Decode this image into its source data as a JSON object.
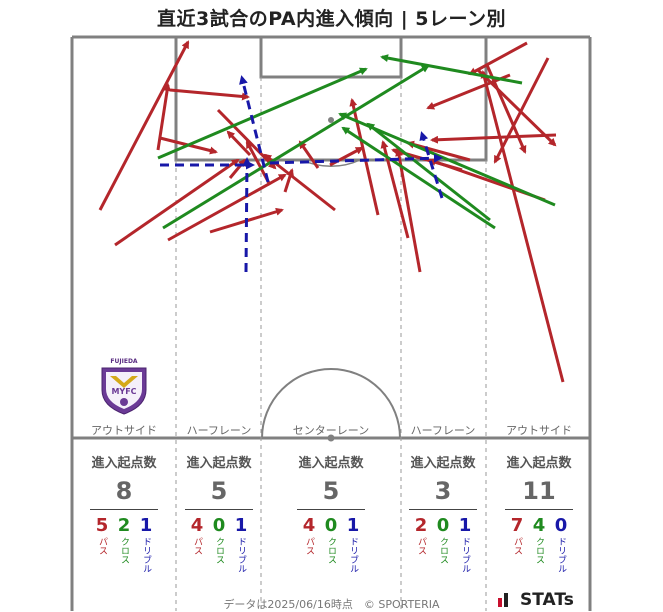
{
  "title": "直近3試合のPA内進入傾向 | 5レーン別",
  "colors": {
    "pass": "#b4262b",
    "cross": "#1f8a1f",
    "dribble": "#1818a8",
    "line": "#777777"
  },
  "lanes": [
    {
      "label": "アウトサイド",
      "stats_head": "進入起点数",
      "total": "8",
      "pass": "5",
      "cross": "2",
      "dribble": "1"
    },
    {
      "label": "ハーフレーン",
      "stats_head": "進入起点数",
      "total": "5",
      "pass": "4",
      "cross": "0",
      "dribble": "1"
    },
    {
      "label": "センターレーン",
      "stats_head": "進入起点数",
      "total": "5",
      "pass": "4",
      "cross": "0",
      "dribble": "1"
    },
    {
      "label": "ハーフレーン",
      "stats_head": "進入起点数",
      "total": "3",
      "pass": "2",
      "cross": "0",
      "dribble": "1"
    },
    {
      "label": "アウトサイド",
      "stats_head": "進入起点数",
      "total": "11",
      "pass": "7",
      "cross": "4",
      "dribble": "0"
    }
  ],
  "type_labels": {
    "pass": "パス",
    "cross": "クロス",
    "dribble": "ドリブル"
  },
  "logo_text": "FUJIEDA",
  "logo_badge": "MYFC",
  "footer": "データは2025/06/16時点　© SPORTERIA",
  "brand": "STATs"
}
